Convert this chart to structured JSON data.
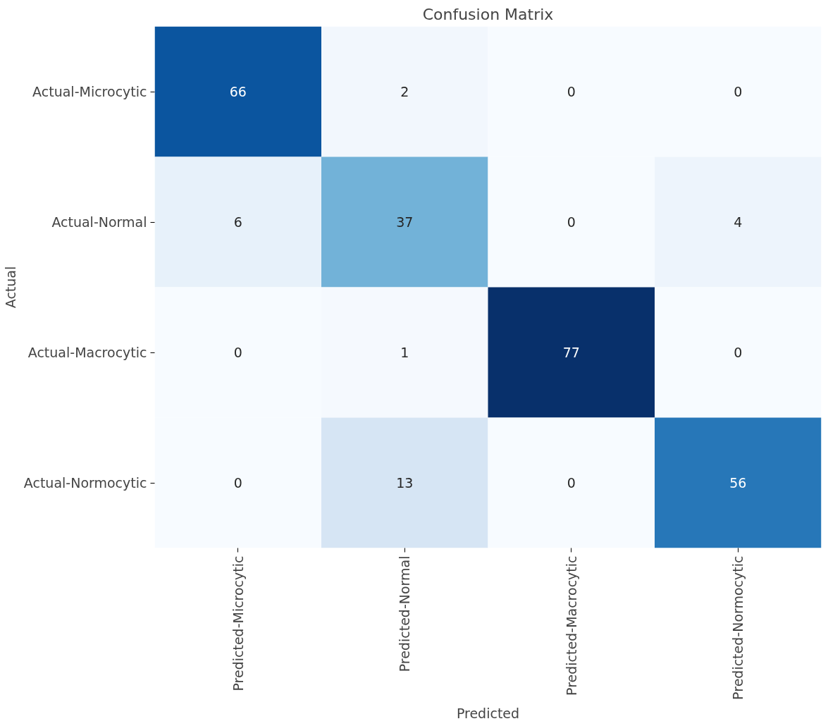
{
  "chart_data": {
    "type": "heatmap",
    "title": "Confusion Matrix",
    "xlabel": "Predicted",
    "ylabel": "Actual",
    "categories": [
      "Predicted-Microcytic",
      "Predicted-Normal",
      "Predicted-Macrocytic",
      "Predicted-Normocytic"
    ],
    "y_categories": [
      "Actual-Microcytic",
      "Actual-Normal",
      "Actual-Macrocytic",
      "Actual-Normocytic"
    ],
    "cells": [
      [
        66,
        2,
        0,
        0
      ],
      [
        6,
        37,
        0,
        4
      ],
      [
        0,
        1,
        77,
        0
      ],
      [
        0,
        13,
        0,
        56
      ]
    ],
    "data_labels": true,
    "grid": false
  }
}
